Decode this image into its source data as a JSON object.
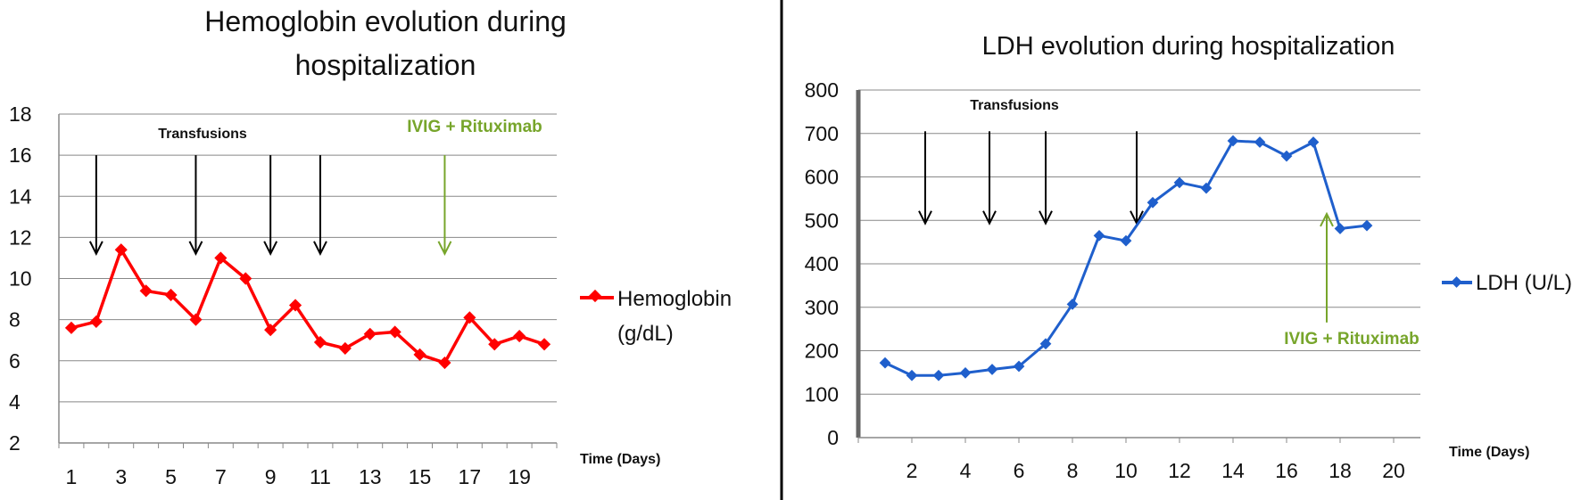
{
  "chart_data": [
    {
      "type": "line",
      "title_line1": "Hemoglobin evolution during",
      "title_line2": "hospitalization",
      "xlabel": "Time (Days)",
      "ylabel": "",
      "x": [
        1,
        2,
        3,
        4,
        5,
        6,
        7,
        8,
        9,
        10,
        11,
        12,
        13,
        14,
        15,
        16,
        17,
        18,
        19,
        20
      ],
      "x_ticks": [
        1,
        3,
        5,
        7,
        9,
        11,
        13,
        15,
        17,
        19
      ],
      "ylim": [
        2,
        18
      ],
      "y_ticks": [
        2,
        4,
        6,
        8,
        10,
        12,
        14,
        16,
        18
      ],
      "series": [
        {
          "name_line1": "Hemoglobin",
          "name_line2": "(g/dL)",
          "color": "#ff0000",
          "values": [
            7.6,
            7.9,
            11.4,
            9.4,
            9.2,
            8.0,
            11.0,
            10.0,
            7.5,
            8.7,
            6.9,
            6.6,
            7.3,
            7.4,
            6.3,
            5.9,
            8.1,
            6.8,
            7.2,
            6.8
          ]
        }
      ],
      "grid": "horizontal",
      "legend_position": "right",
      "annotations": {
        "transfusions_label": "Transfusions",
        "transfusion_days": [
          2,
          6,
          9,
          11
        ],
        "treatment_label": "IVIG + Rituximab",
        "treatment_day": 16,
        "treatment_color": "#77a52b"
      }
    },
    {
      "type": "line",
      "title": "LDH evolution during hospitalization",
      "xlabel": "Time (Days)",
      "ylabel": "",
      "x": [
        1,
        2,
        3,
        4,
        5,
        6,
        7,
        8,
        9,
        10,
        11,
        12,
        13,
        14,
        15,
        16,
        17,
        18,
        19
      ],
      "x_ticks": [
        2,
        4,
        6,
        8,
        10,
        12,
        14,
        16,
        18,
        20
      ],
      "xlim": [
        0,
        21
      ],
      "ylim": [
        0,
        800
      ],
      "y_ticks": [
        0,
        100,
        200,
        300,
        400,
        500,
        600,
        700,
        800
      ],
      "series": [
        {
          "name": "LDH (U/L)",
          "color": "#1f5fcc",
          "values": [
            172,
            143,
            143,
            149,
            157,
            164,
            216,
            307,
            465,
            453,
            541,
            587,
            574,
            683,
            680,
            648,
            680,
            481,
            488
          ]
        }
      ],
      "grid": "horizontal",
      "legend_position": "right",
      "annotations": {
        "transfusions_label": "Transfusions",
        "transfusion_days": [
          2.5,
          4.9,
          7.0,
          10.4
        ],
        "treatment_label": "IVIG + Rituximab",
        "treatment_day": 17.5,
        "treatment_color": "#77a52b"
      }
    }
  ]
}
